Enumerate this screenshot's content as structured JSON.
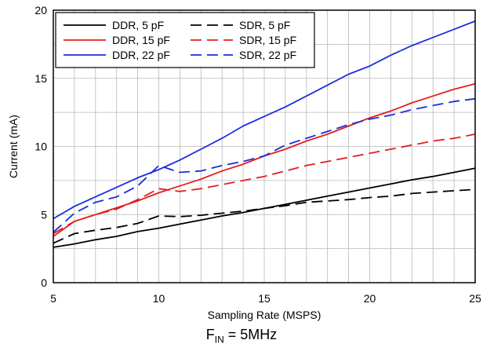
{
  "chart_data": {
    "type": "line",
    "xlabel": "Sampling Rate (MSPS)",
    "ylabel": "Current (mA)",
    "xlim": [
      5,
      25
    ],
    "ylim": [
      0,
      20
    ],
    "xticks": [
      5,
      10,
      15,
      20,
      25
    ],
    "yticks": [
      0,
      5,
      10,
      15,
      20
    ],
    "grid": true,
    "legend_position": "top-left",
    "colors": {
      "black": "#000000",
      "red": "#e41e1e",
      "blue": "#1b2fdc"
    },
    "series": [
      {
        "name": "DDR, 5 pF",
        "color": "#000000",
        "dash": "solid",
        "x": [
          5,
          6,
          7,
          8,
          9,
          10,
          11,
          12,
          13,
          14,
          15,
          16,
          17,
          18,
          19,
          20,
          21,
          22,
          23,
          24,
          25
        ],
        "y": [
          2.6,
          2.85,
          3.15,
          3.4,
          3.75,
          4.0,
          4.3,
          4.6,
          4.9,
          5.15,
          5.45,
          5.75,
          6.05,
          6.35,
          6.65,
          6.95,
          7.25,
          7.55,
          7.8,
          8.1,
          8.4
        ]
      },
      {
        "name": "DDR, 15 pF",
        "color": "#e41e1e",
        "dash": "solid",
        "x": [
          5,
          6,
          7,
          8,
          9,
          10,
          11,
          12,
          13,
          14,
          15,
          16,
          17,
          18,
          19,
          20,
          21,
          22,
          23,
          24,
          25
        ],
        "y": [
          3.4,
          4.5,
          5.0,
          5.5,
          6.0,
          6.6,
          7.1,
          7.6,
          8.2,
          8.7,
          9.3,
          9.8,
          10.4,
          10.9,
          11.5,
          12.1,
          12.6,
          13.2,
          13.7,
          14.2,
          14.6
        ]
      },
      {
        "name": "DDR, 22 pF",
        "color": "#1b2fdc",
        "dash": "solid",
        "x": [
          5,
          6,
          7,
          8,
          9,
          10,
          11,
          12,
          13,
          14,
          15,
          16,
          17,
          18,
          19,
          20,
          21,
          22,
          23,
          24,
          25
        ],
        "y": [
          4.7,
          5.6,
          6.3,
          7.0,
          7.7,
          8.3,
          9.0,
          9.8,
          10.6,
          11.5,
          12.2,
          12.9,
          13.7,
          14.5,
          15.3,
          15.9,
          16.7,
          17.4,
          18.0,
          18.6,
          19.2
        ]
      },
      {
        "name": "SDR, 5 pF",
        "color": "#000000",
        "dash": "dashed",
        "x": [
          5,
          6,
          7,
          8,
          9,
          10,
          11,
          12,
          13,
          14,
          15,
          16,
          17,
          18,
          19,
          20,
          21,
          22,
          23,
          24,
          25
        ],
        "y": [
          2.9,
          3.6,
          3.85,
          4.05,
          4.35,
          4.9,
          4.85,
          4.95,
          5.1,
          5.25,
          5.45,
          5.65,
          5.9,
          6.0,
          6.1,
          6.25,
          6.35,
          6.55,
          6.65,
          6.75,
          6.85
        ]
      },
      {
        "name": "SDR, 15 pF",
        "color": "#e41e1e",
        "dash": "dashed",
        "x": [
          5,
          6,
          7,
          8,
          9,
          10,
          11,
          12,
          13,
          14,
          15,
          16,
          17,
          18,
          19,
          20,
          21,
          22,
          23,
          24,
          25
        ],
        "y": [
          3.6,
          4.5,
          5.0,
          5.4,
          6.1,
          6.9,
          6.7,
          6.9,
          7.2,
          7.5,
          7.8,
          8.2,
          8.6,
          8.9,
          9.2,
          9.5,
          9.8,
          10.1,
          10.4,
          10.6,
          10.9
        ]
      },
      {
        "name": "SDR, 22 pF",
        "color": "#1b2fdc",
        "dash": "dashed",
        "x": [
          5,
          6,
          7,
          8,
          9,
          10,
          11,
          12,
          13,
          14,
          15,
          16,
          17,
          18,
          19,
          20,
          21,
          22,
          23,
          24,
          25
        ],
        "y": [
          3.7,
          5.1,
          5.9,
          6.3,
          7.1,
          8.6,
          8.1,
          8.2,
          8.6,
          8.9,
          9.3,
          10.1,
          10.6,
          11.1,
          11.6,
          12.0,
          12.3,
          12.7,
          13.0,
          13.3,
          13.5
        ]
      }
    ]
  },
  "caption": {
    "main": "F",
    "subscript": "IN",
    "rest": " = 5MHz"
  }
}
